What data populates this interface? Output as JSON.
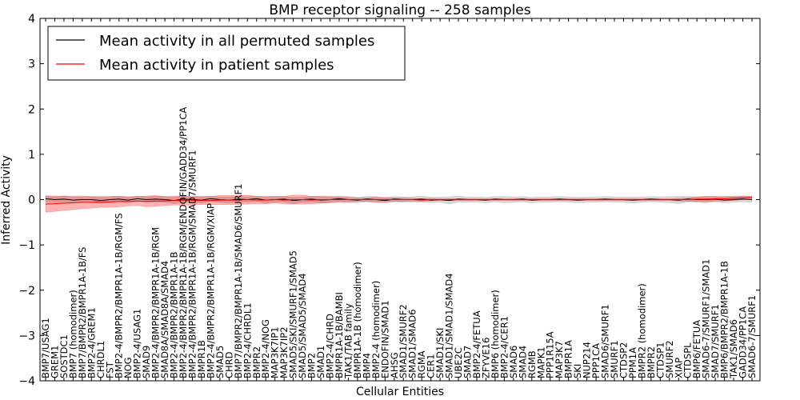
{
  "chart_data": {
    "type": "line",
    "title": "BMP receptor signaling -- 258 samples",
    "xlabel": "Cellular Entities",
    "ylabel": "Inferred Activity",
    "ylim": [
      -4,
      4
    ],
    "yticks": [
      -4,
      -3,
      -2,
      -1,
      0,
      1,
      2,
      3,
      4
    ],
    "ytick_labels": [
      "−4",
      "−3",
      "−2",
      "−1",
      "0",
      "1",
      "2",
      "3",
      "4"
    ],
    "legend_position": "top-left",
    "categories": [
      "BMP7/USAG1",
      "GREM1",
      "SOSTDC1",
      "BMP7 (homodimer)",
      "BMP7/BMPR2/BMPR1A-1B/FS",
      "BMP2-4/GREM1",
      "CHRDL1",
      "FST",
      "BMP2-4/BMPR2/BMPR1A-1B/RGM/FS",
      "NOG",
      "BMP2-4/USAG1",
      "SMAD9",
      "BMP2-4/BMPR2/BMPR1A-1B/RGM",
      "SMAD8A/SMAD8A/SMAD4",
      "BMP2-4/BMPR2/BMPR1A-1B",
      "BMP2-4/BMPR2/BMPR1A-1B/RGM/ENDOFIN/GADD34/PP1CA",
      "BMP2-4/BMPR2/BMPR1A-1B/RGM/SMAD7/SMURF1",
      "BMPR1B",
      "BMP2-4/BMPR2/BMPR1A-1B/RGM/XIAP",
      "SMAD5",
      "CHRD",
      "BMP7/BMPR2/BMPR1A-1B/SMAD6/SMURF1",
      "BMP2-4/CHRDL1",
      "BMPR2",
      "BMP2-4/NOG",
      "MAP3K7IP1",
      "MAP3K7IP2",
      "SMAD5/SKI/SMURF1/SMAD5",
      "SMAD5/SMAD5/SMAD4",
      "BMP2",
      "SMAD1",
      "BMP2-4/CHRD",
      "BMPR1A-1B/BAMBI",
      "TAK1/TAB family",
      "BMPR1A-1B (homodimer)",
      "BMP4",
      "BMP2-4 (homodimer)",
      "ENDOFIN/SMAD1",
      "AHSG",
      "SMAD1/SMURF2",
      "SMAD1/SMAD6",
      "RGMA",
      "CER1",
      "SMAD1/SKI",
      "SMAD1/SMAD1/SMAD4",
      "UBE2C",
      "SMAD7",
      "BMP2-4/FETUA",
      "ZFYVE16",
      "BMP6 (homodimer)",
      "BMP2-4/CER1",
      "SMAD6",
      "SMAD4",
      "RGMB",
      "MAPK1",
      "PPP1R15A",
      "MAP3K7",
      "BMPR1A",
      "SKI",
      "NUP214",
      "PPP1CA",
      "SMAD6/SMURF1",
      "SMURF1",
      "CTDSP2",
      "PPM1A",
      "BMPR2 (homodimer)",
      "BMPR2",
      "CTDSP1",
      "SMURF2",
      "XIAP",
      "CTDSPL",
      "BMP6/FETUA",
      "SMAD6-7/SMURF1/SMAD1",
      "SMAD7/SMURF1",
      "BMP6/BMPR2/BMPR1A-1B",
      "TAK1/SMAD6",
      "GADD34/PP1CA",
      "SMAD6-7/SMURF1"
    ],
    "series": [
      {
        "name": "Mean activity in all permuted samples",
        "color": "#000000",
        "values": [
          0.02,
          0.0,
          0.01,
          -0.01,
          0.0,
          0.0,
          -0.02,
          0.0,
          0.01,
          -0.01,
          0.02,
          0.0,
          0.01,
          0.0,
          -0.02,
          0.01,
          0.0,
          -0.01,
          0.02,
          0.0,
          -0.01,
          0.01,
          0.0,
          0.02,
          -0.01,
          0.0,
          0.01,
          -0.02,
          0.0,
          0.01,
          -0.01,
          0.0,
          0.02,
          0.0,
          -0.01,
          0.01,
          0.0,
          -0.02,
          0.01,
          0.0,
          0.0,
          0.01,
          -0.01,
          0.0,
          -0.02,
          0.01,
          0.0,
          0.0,
          -0.01,
          0.01,
          0.0,
          0.0,
          0.01,
          -0.01,
          0.0,
          0.0,
          0.01,
          0.0,
          -0.01,
          0.0,
          0.0,
          0.01,
          0.0,
          0.0,
          -0.01,
          0.0,
          0.01,
          0.0,
          0.0,
          -0.01,
          0.01,
          0.0,
          0.0,
          0.01,
          -0.01,
          0.0,
          0.01,
          0.0
        ],
        "band": [
          0.07,
          0.06,
          0.07,
          0.06,
          0.06,
          0.06,
          0.07,
          0.06,
          0.06,
          0.07,
          0.06,
          0.06,
          0.07,
          0.06,
          0.07,
          0.06,
          0.06,
          0.07,
          0.06,
          0.06,
          0.07,
          0.06,
          0.06,
          0.06,
          0.07,
          0.06,
          0.06,
          0.07,
          0.06,
          0.06,
          0.07,
          0.06,
          0.06,
          0.07,
          0.06,
          0.06,
          0.07,
          0.06,
          0.06,
          0.06,
          0.06,
          0.07,
          0.06,
          0.06,
          0.08,
          0.07,
          0.06,
          0.06,
          0.06,
          0.06,
          0.07,
          0.06,
          0.06,
          0.06,
          0.06,
          0.06,
          0.06,
          0.06,
          0.06,
          0.06,
          0.06,
          0.06,
          0.06,
          0.06,
          0.07,
          0.06,
          0.06,
          0.06,
          0.07,
          0.08,
          0.06,
          0.06,
          0.07,
          0.06,
          0.06,
          0.06,
          0.06,
          0.06
        ]
      },
      {
        "name": "Mean activity in patient samples",
        "color": "#ff0000",
        "values": [
          -0.1,
          -0.09,
          -0.08,
          -0.07,
          -0.06,
          -0.06,
          -0.05,
          -0.05,
          -0.04,
          -0.04,
          -0.03,
          -0.04,
          -0.03,
          -0.03,
          -0.02,
          -0.02,
          -0.02,
          -0.02,
          -0.02,
          -0.01,
          -0.01,
          -0.01,
          0.0,
          -0.01,
          -0.01,
          0.0,
          -0.01,
          0.0,
          0.0,
          -0.01,
          0.0,
          0.0,
          0.0,
          0.0,
          0.0,
          0.0,
          0.0,
          0.0,
          0.0,
          0.0,
          0.0,
          -0.01,
          0.0,
          0.0,
          0.0,
          0.0,
          0.0,
          0.0,
          0.0,
          0.0,
          0.0,
          0.0,
          0.0,
          0.0,
          0.0,
          0.0,
          0.0,
          0.0,
          0.0,
          0.0,
          0.0,
          0.0,
          0.0,
          0.0,
          0.0,
          0.0,
          0.0,
          0.0,
          0.0,
          0.0,
          0.0,
          0.01,
          0.01,
          0.02,
          0.02,
          0.03,
          0.04,
          0.05
        ],
        "band": [
          0.18,
          0.17,
          0.16,
          0.15,
          0.14,
          0.13,
          0.12,
          0.12,
          0.12,
          0.1,
          0.1,
          0.12,
          0.12,
          0.1,
          0.1,
          0.1,
          0.1,
          0.09,
          0.09,
          0.1,
          0.1,
          0.1,
          0.1,
          0.08,
          0.08,
          0.08,
          0.08,
          0.1,
          0.1,
          0.08,
          0.08,
          0.07,
          0.06,
          0.05,
          0.04,
          0.04,
          0.05,
          0.05,
          0.04,
          0.04,
          0.03,
          0.03,
          0.03,
          0.02,
          0.02,
          0.02,
          0.02,
          0.02,
          0.02,
          0.02,
          0.02,
          0.02,
          0.02,
          0.02,
          0.02,
          0.02,
          0.02,
          0.02,
          0.02,
          0.02,
          0.02,
          0.02,
          0.02,
          0.02,
          0.02,
          0.02,
          0.02,
          0.02,
          0.02,
          0.03,
          0.04,
          0.05,
          0.06,
          0.05,
          0.05,
          0.05,
          0.04,
          0.03
        ]
      }
    ]
  }
}
